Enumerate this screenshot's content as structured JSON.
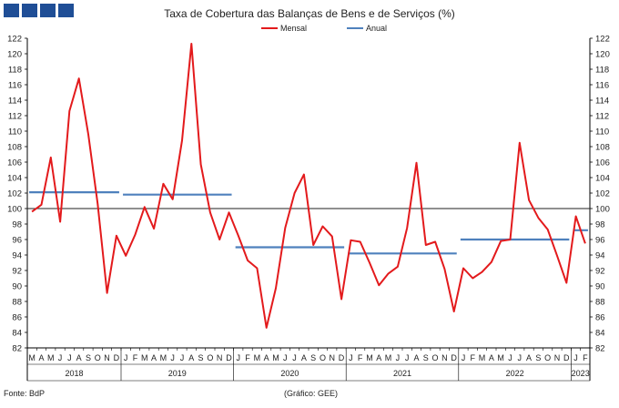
{
  "colors": {
    "mensal": "#e31a1c",
    "anual": "#4f81bd",
    "logo": "#1f4e96",
    "reference": "#222222",
    "axis": "#000000"
  },
  "footer": {
    "source": "Fonte: BdP",
    "credit": "(Gráfico: GEE)"
  },
  "chart_data": {
    "type": "line",
    "title": "Taxa de Cobertura das Balanças de Bens e de Serviços (%)",
    "ylim": [
      82,
      122
    ],
    "yticks": [
      82,
      84,
      86,
      88,
      90,
      92,
      94,
      96,
      98,
      100,
      102,
      104,
      106,
      108,
      110,
      112,
      114,
      116,
      118,
      120,
      122
    ],
    "reference_line": 100,
    "grid": false,
    "legend_position": "top-center",
    "month_labels": [
      "M",
      "A",
      "M",
      "J",
      "J",
      "A",
      "S",
      "O",
      "N",
      "D",
      "J",
      "F",
      "M",
      "A",
      "M",
      "J",
      "J",
      "A",
      "S",
      "O",
      "N",
      "D",
      "J",
      "F",
      "M",
      "A",
      "M",
      "J",
      "J",
      "A",
      "S",
      "O",
      "N",
      "D",
      "J",
      "F",
      "M",
      "A",
      "M",
      "J",
      "J",
      "A",
      "S",
      "O",
      "N",
      "D",
      "J",
      "F",
      "M",
      "A",
      "M",
      "J",
      "J",
      "A",
      "S",
      "O",
      "N",
      "D",
      "J",
      "F"
    ],
    "years": [
      {
        "label": "2018",
        "start": 0,
        "count": 10
      },
      {
        "label": "2019",
        "start": 10,
        "count": 12
      },
      {
        "label": "2020",
        "start": 22,
        "count": 12
      },
      {
        "label": "2021",
        "start": 34,
        "count": 12
      },
      {
        "label": "2022",
        "start": 46,
        "count": 12
      },
      {
        "label": "2023",
        "start": 58,
        "count": 2
      }
    ],
    "series": [
      {
        "name": "Mensal",
        "kind": "monthly",
        "values": [
          99.6,
          100.5,
          106.6,
          98.3,
          112.6,
          116.8,
          109.6,
          100.6,
          89.1,
          96.5,
          93.9,
          96.6,
          100.2,
          97.4,
          103.2,
          101.2,
          108.8,
          121.3,
          105.7,
          99.5,
          96.0,
          99.5,
          96.5,
          93.3,
          92.3,
          84.6,
          89.7,
          97.5,
          102.0,
          104.4,
          95.3,
          97.7,
          96.4,
          88.3,
          95.9,
          95.7,
          93.0,
          90.1,
          91.6,
          92.5,
          97.5,
          105.9,
          95.3,
          95.7,
          92.2,
          86.7,
          92.3,
          91.0,
          91.8,
          93.1,
          95.8,
          96.0,
          108.5,
          101.1,
          98.8,
          97.3,
          93.9,
          90.4,
          99.0,
          95.5
        ]
      },
      {
        "name": "Anual",
        "kind": "annual",
        "segments": [
          {
            "year": "2018",
            "value": 102.1
          },
          {
            "year": "2019",
            "value": 101.8
          },
          {
            "year": "2020",
            "value": 95.0
          },
          {
            "year": "2021",
            "value": 94.2
          },
          {
            "year": "2022",
            "value": 96.0
          },
          {
            "year": "2023",
            "value": 97.2
          }
        ]
      }
    ]
  }
}
